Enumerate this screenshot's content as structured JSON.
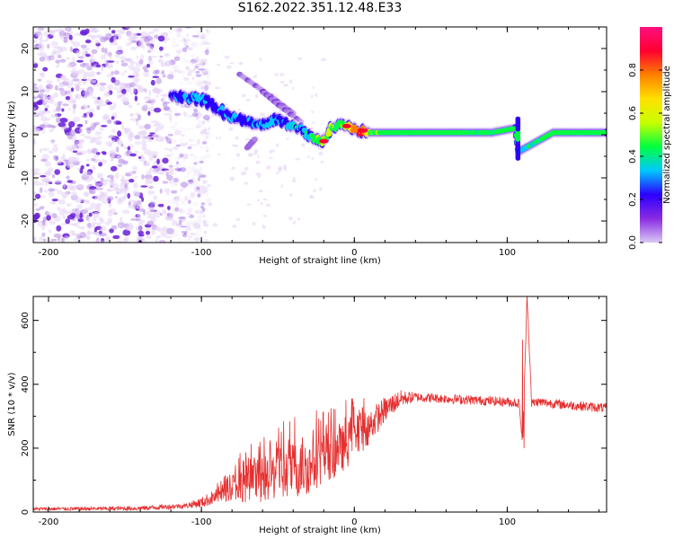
{
  "figure": {
    "title": "S162.2022.351.12.48.E33"
  },
  "colors": {
    "axis": "#000000",
    "snr_line": "#e53030",
    "speckle_light": "#e6d4f5",
    "speckle_mid": "#b58ae6",
    "speckle_dark": "#6a1fd9"
  },
  "chart_data": [
    {
      "type": "heatmap",
      "title": "",
      "xlabel": "Height of straight line (km)",
      "ylabel": "Frequency (Hz)",
      "xlim": [
        -210,
        165
      ],
      "ylim": [
        -25,
        25
      ],
      "x_ticks": [
        -200,
        -100,
        0,
        100
      ],
      "y_ticks": [
        -20,
        -10,
        0,
        10,
        20
      ],
      "colorbar": {
        "label": "Normalized spectral amplitude",
        "range": [
          0,
          1
        ],
        "ticks": [
          0.0,
          0.2,
          0.4,
          0.6,
          0.8
        ],
        "tick_labels": [
          "0.0",
          "0.2",
          "0.4",
          "0.6",
          "0.8"
        ],
        "colormap": [
          "#d9c8f5",
          "#8a2be2",
          "#2b00ff",
          "#00c8ff",
          "#00ff40",
          "#c8ff00",
          "#ffe000",
          "#ff8000",
          "#ff0030",
          "#ff1080"
        ]
      },
      "noise_region_x": [
        -210,
        -120
      ],
      "signal_ridge": [
        {
          "x": -120,
          "y": 9.0,
          "a": 0.25
        },
        {
          "x": -110,
          "y": 8.5,
          "a": 0.35
        },
        {
          "x": -100,
          "y": 8.0,
          "a": 0.35
        },
        {
          "x": -95,
          "y": 7.5,
          "a": 0.35
        },
        {
          "x": -90,
          "y": 6.0,
          "a": 0.3
        },
        {
          "x": -85,
          "y": 5.0,
          "a": 0.3
        },
        {
          "x": -80,
          "y": 4.0,
          "a": 0.35
        },
        {
          "x": -75,
          "y": 3.5,
          "a": 0.3
        },
        {
          "x": -70,
          "y": 3.0,
          "a": 0.3
        },
        {
          "x": -65,
          "y": 2.5,
          "a": 0.35
        },
        {
          "x": -60,
          "y": 2.5,
          "a": 0.3
        },
        {
          "x": -55,
          "y": 3.0,
          "a": 0.35
        },
        {
          "x": -50,
          "y": 3.5,
          "a": 0.3
        },
        {
          "x": -45,
          "y": 3.0,
          "a": 0.35
        },
        {
          "x": -40,
          "y": 2.0,
          "a": 0.4
        },
        {
          "x": -35,
          "y": 1.5,
          "a": 0.35
        },
        {
          "x": -30,
          "y": 0.0,
          "a": 0.4
        },
        {
          "x": -25,
          "y": -1.0,
          "a": 0.5
        },
        {
          "x": -20,
          "y": -1.5,
          "a": 0.6
        },
        {
          "x": -15,
          "y": 1.5,
          "a": 0.55
        },
        {
          "x": -10,
          "y": 2.5,
          "a": 0.5
        },
        {
          "x": -5,
          "y": 2.0,
          "a": 0.65
        },
        {
          "x": 0,
          "y": 1.5,
          "a": 0.8
        },
        {
          "x": 5,
          "y": 1.0,
          "a": 0.9
        },
        {
          "x": 10,
          "y": 0.5,
          "a": 0.55
        },
        {
          "x": 30,
          "y": 0.5,
          "a": 0.5
        },
        {
          "x": 60,
          "y": 0.5,
          "a": 0.5
        },
        {
          "x": 90,
          "y": 0.5,
          "a": 0.45
        },
        {
          "x": 105,
          "y": 1.5,
          "a": 0.5
        },
        {
          "x": 107,
          "y": -4.0,
          "a": 0.4
        },
        {
          "x": 130,
          "y": 0.5,
          "a": 0.5
        },
        {
          "x": 165,
          "y": 0.5,
          "a": 0.5
        }
      ],
      "side_branches": [
        {
          "x": [
            -75,
            -55,
            -40
          ],
          "y": [
            14,
            9,
            5
          ]
        },
        {
          "x": [
            -60,
            -50,
            -35
          ],
          "y": [
            10,
            7,
            3
          ]
        },
        {
          "x": [
            -70,
            -65
          ],
          "y": [
            -3,
            -1
          ]
        }
      ]
    },
    {
      "type": "line",
      "title": "",
      "xlabel": "Height of straight line (km)",
      "ylabel": "SNR (10 * v/v)",
      "xlim": [
        -210,
        165
      ],
      "ylim": [
        0,
        675
      ],
      "x_ticks": [
        -200,
        -100,
        0,
        100
      ],
      "y_ticks": [
        0,
        200,
        400,
        600
      ],
      "trend": {
        "x": [
          -210,
          -180,
          -140,
          -110,
          -100,
          -90,
          -80,
          -70,
          -60,
          -50,
          -40,
          -30,
          -20,
          -10,
          0,
          10,
          20,
          30,
          40,
          60,
          80,
          100,
          108,
          110,
          113,
          116,
          120,
          140,
          165
        ],
        "y": [
          10,
          10,
          12,
          20,
          30,
          50,
          80,
          90,
          100,
          120,
          130,
          140,
          170,
          190,
          230,
          270,
          320,
          355,
          360,
          355,
          350,
          345,
          340,
          200,
          680,
          340,
          345,
          335,
          325
        ]
      },
      "noise_amplitude": {
        "x": [
          -210,
          -110,
          -90,
          -70,
          -40,
          -20,
          0,
          20,
          40,
          100,
          165
        ],
        "y": [
          5,
          8,
          25,
          60,
          90,
          80,
          70,
          40,
          15,
          15,
          15
        ]
      },
      "spikes": [
        {
          "x": 110,
          "y": 540
        },
        {
          "x": 111,
          "y": 200
        },
        {
          "x": 113,
          "y": 680
        },
        {
          "x": -1,
          "y": 340
        }
      ]
    }
  ]
}
